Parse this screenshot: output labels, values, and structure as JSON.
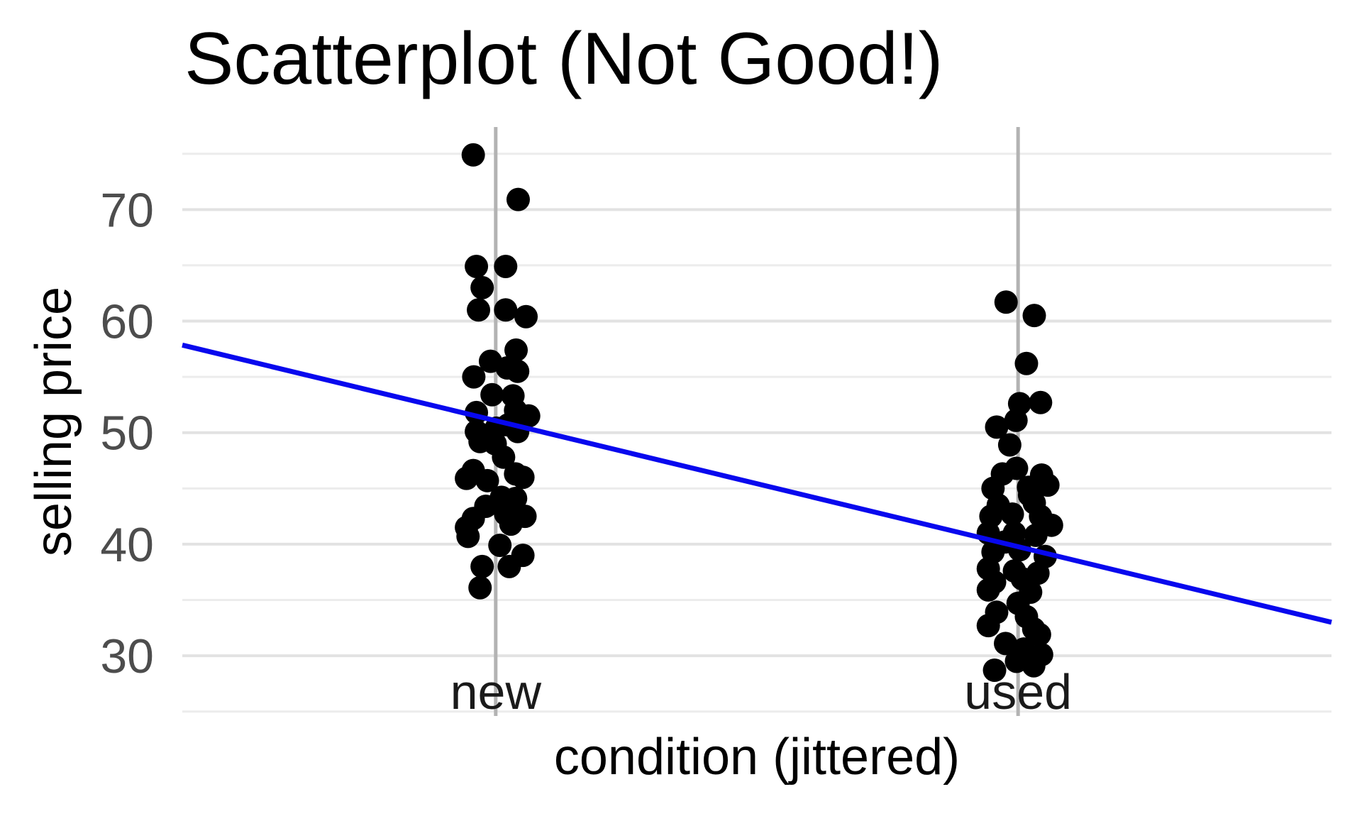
{
  "chart_data": {
    "type": "scatter",
    "title": "Scatterplot (Not Good!)",
    "xlabel": "condition (jittered)",
    "ylabel": "selling price",
    "legend": "none",
    "grid": true,
    "categories": [
      {
        "label": "new",
        "x": 1
      },
      {
        "label": "used",
        "x": 2
      }
    ],
    "xlim": [
      0.4,
      2.6
    ],
    "ylim": [
      24.6,
      77.4
    ],
    "y_major_ticks": [
      30,
      40,
      50,
      60,
      70
    ],
    "y_minor_gridlines": [
      25,
      35,
      45,
      55,
      65,
      75
    ],
    "point_radius": 16.5,
    "colors": {
      "background": "#ffffff",
      "major_grid": "#e2e2e2",
      "minor_grid": "#ececec",
      "category_line": "#b3b3b3",
      "point": "#000000",
      "regression": "#0808ee",
      "y_tick_text": "#4d4d4d",
      "x_tick_text": "#1a1a1a",
      "title_text": "#000000"
    },
    "regression_line": {
      "x1": 0.4,
      "y1": 57.85,
      "x2": 2.6,
      "y2": 33.0,
      "width": 7
    },
    "series": [
      {
        "name": "new",
        "points": [
          [
            0.957,
            74.9
          ],
          [
            1.043,
            70.9
          ],
          [
            0.963,
            64.9
          ],
          [
            1.019,
            64.9
          ],
          [
            0.974,
            63.0
          ],
          [
            0.967,
            61.0
          ],
          [
            1.019,
            61.0
          ],
          [
            1.058,
            60.4
          ],
          [
            1.039,
            57.4
          ],
          [
            0.99,
            56.4
          ],
          [
            1.022,
            55.8
          ],
          [
            0.958,
            55.0
          ],
          [
            1.042,
            55.5
          ],
          [
            1.033,
            53.3
          ],
          [
            0.993,
            53.4
          ],
          [
            0.963,
            51.8
          ],
          [
            1.038,
            52.0
          ],
          [
            1.063,
            51.5
          ],
          [
            1.024,
            50.7
          ],
          [
            1.001,
            50.4
          ],
          [
            0.963,
            50.1
          ],
          [
            1.042,
            50.1
          ],
          [
            0.97,
            49.2
          ],
          [
            0.999,
            49.0
          ],
          [
            1.015,
            47.8
          ],
          [
            0.957,
            46.6
          ],
          [
            1.038,
            46.3
          ],
          [
            1.052,
            46.0
          ],
          [
            0.944,
            45.9
          ],
          [
            0.984,
            45.7
          ],
          [
            1.011,
            44.2
          ],
          [
            1.038,
            44.1
          ],
          [
            0.981,
            43.4
          ],
          [
            0.957,
            42.3
          ],
          [
            1.019,
            42.7
          ],
          [
            1.056,
            42.5
          ],
          [
            0.944,
            41.5
          ],
          [
            1.029,
            41.8
          ],
          [
            0.947,
            40.7
          ],
          [
            1.008,
            39.9
          ],
          [
            1.052,
            39.0
          ],
          [
            0.974,
            38.0
          ],
          [
            1.026,
            38.0
          ],
          [
            0.97,
            36.1
          ]
        ]
      },
      {
        "name": "used",
        "points": [
          [
            1.977,
            61.7
          ],
          [
            2.031,
            60.5
          ],
          [
            2.016,
            56.2
          ],
          [
            2.003,
            52.6
          ],
          [
            2.043,
            52.7
          ],
          [
            1.996,
            51.1
          ],
          [
            1.959,
            50.5
          ],
          [
            1.984,
            48.9
          ],
          [
            1.997,
            46.8
          ],
          [
            1.97,
            46.3
          ],
          [
            2.045,
            46.2
          ],
          [
            1.952,
            45.0
          ],
          [
            2.02,
            45.1
          ],
          [
            2.057,
            45.3
          ],
          [
            1.962,
            43.5
          ],
          [
            2.031,
            43.7
          ],
          [
            2.022,
            44.4
          ],
          [
            1.948,
            42.5
          ],
          [
            1.989,
            42.7
          ],
          [
            2.043,
            42.5
          ],
          [
            2.064,
            41.7
          ],
          [
            1.943,
            41.0
          ],
          [
            1.993,
            41.0
          ],
          [
            2.034,
            40.8
          ],
          [
            1.975,
            40.2
          ],
          [
            1.952,
            39.3
          ],
          [
            2.003,
            39.5
          ],
          [
            2.052,
            38.9
          ],
          [
            1.943,
            37.8
          ],
          [
            1.993,
            37.6
          ],
          [
            2.038,
            37.4
          ],
          [
            2.008,
            36.9
          ],
          [
            1.955,
            36.6
          ],
          [
            1.943,
            35.9
          ],
          [
            2.024,
            35.7
          ],
          [
            2.0,
            34.7
          ],
          [
            1.959,
            33.9
          ],
          [
            2.016,
            33.5
          ],
          [
            1.943,
            32.7
          ],
          [
            2.03,
            32.4
          ],
          [
            2.041,
            31.9
          ],
          [
            1.976,
            31.1
          ],
          [
            2.011,
            30.6
          ],
          [
            2.045,
            30.1
          ],
          [
            1.997,
            29.5
          ],
          [
            2.03,
            29.1
          ],
          [
            1.955,
            28.7
          ]
        ]
      }
    ]
  }
}
